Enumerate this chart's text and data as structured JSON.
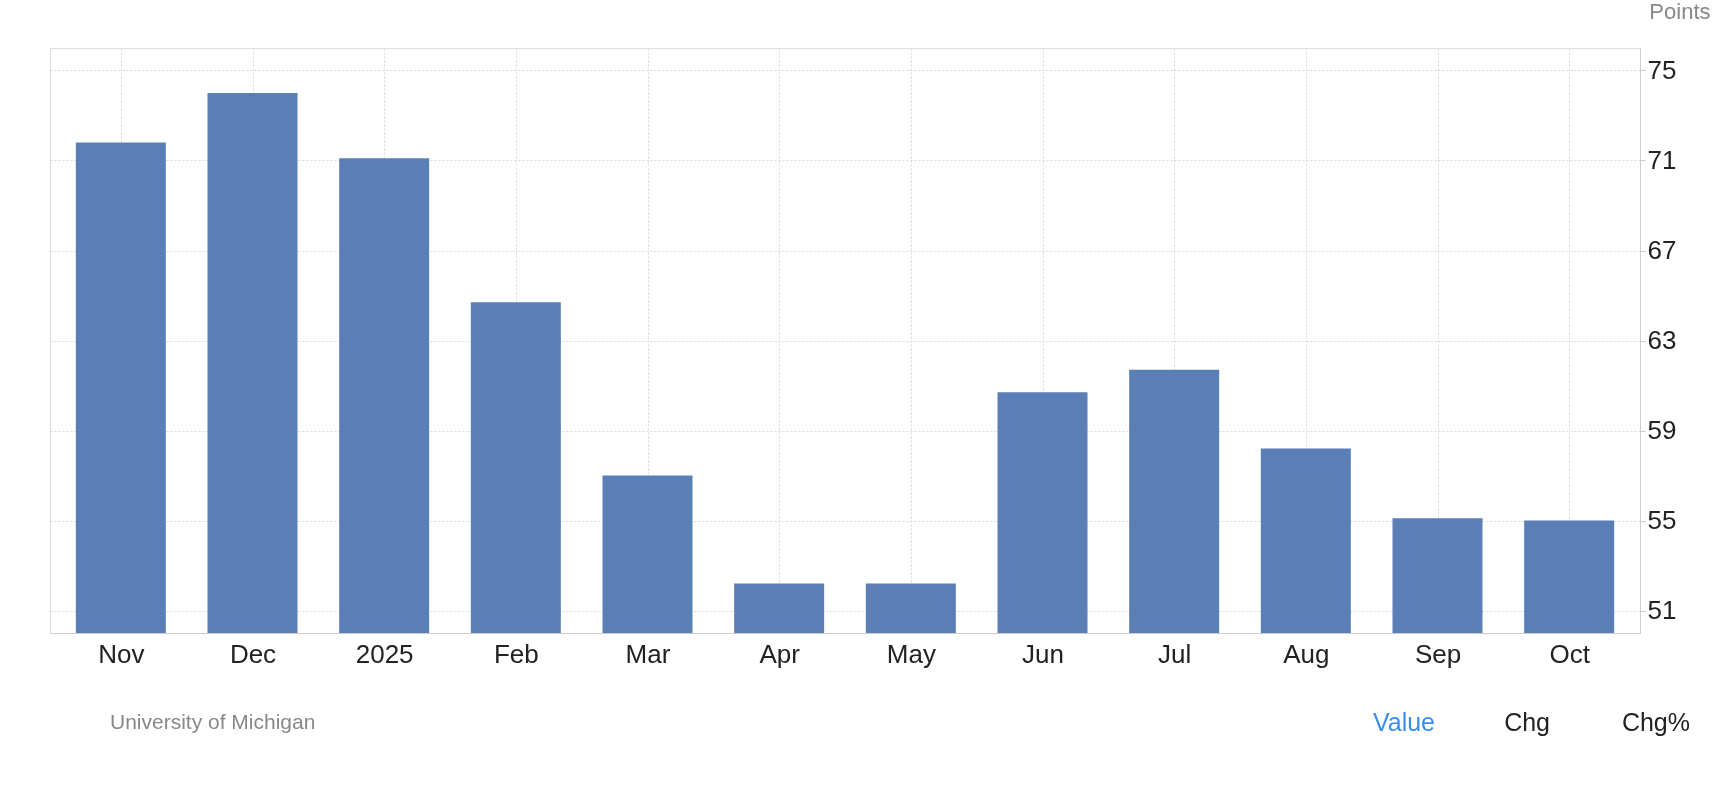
{
  "chart_data": {
    "type": "bar",
    "ylabel": "Points",
    "categories": [
      "Nov",
      "Dec",
      "2025",
      "Feb",
      "Mar",
      "Apr",
      "May",
      "Jun",
      "Jul",
      "Aug",
      "Sep",
      "Oct"
    ],
    "values": [
      71.8,
      74.0,
      71.1,
      64.7,
      57.0,
      52.2,
      52.2,
      60.7,
      61.7,
      58.2,
      55.1,
      55.0
    ],
    "color": "#5a7fb6",
    "ylim": [
      50,
      76
    ],
    "yticks": [
      51,
      55,
      59,
      63,
      67,
      71,
      75
    ],
    "grid": true,
    "annotations": [
      "University of Michigan",
      "Value",
      "Chg",
      "Chg%"
    ]
  }
}
